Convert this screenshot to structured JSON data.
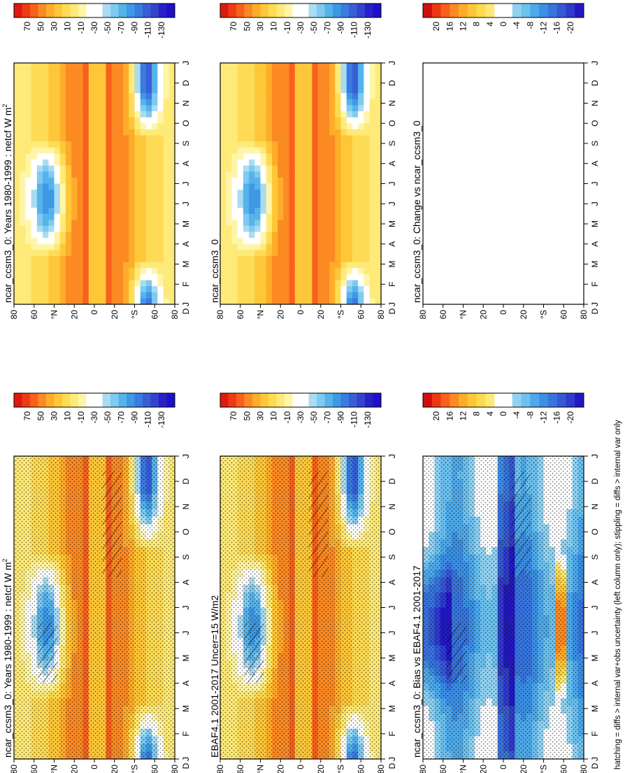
{
  "figure": {
    "footer": "hatching = diffs > internal var+obs uncertainty (left column only); stippling = diffs > internal var only"
  },
  "chart_data": [
    {
      "type": "heatmap",
      "title": "ncar_ccsm3_0: Years 1980-1999 : netcf W m^-2",
      "title_main": "ncar_ccsm3_0: Years 1980-1999 : netcf W m",
      "title_sup": "2",
      "x_ticks": [
        "J",
        "F",
        "M",
        "A",
        "M",
        "J",
        "J",
        "A",
        "S",
        "O",
        "N",
        "D",
        "J"
      ],
      "y_ticks": [
        "80",
        "60",
        "°N",
        "20",
        "0",
        "20",
        "°S",
        "60",
        "80"
      ],
      "y_start_label": "D",
      "colorbar": {
        "labels": [
          "70",
          "50",
          "30",
          "10",
          "-10",
          "-30",
          "-50",
          "-70",
          "-90",
          "-110",
          "-130"
        ],
        "range": [
          -130,
          70
        ]
      },
      "field": "climatology",
      "stippling": true,
      "hatching": true
    },
    {
      "type": "heatmap",
      "title": "ncar_ccsm3_0: Years 1980-1999 : netcf W m^-2",
      "title_main": "ncar_ccsm3_0: Years 1980-1999 : netcf W m",
      "title_sup": "2",
      "x_ticks": [
        "J",
        "F",
        "M",
        "A",
        "M",
        "J",
        "J",
        "A",
        "S",
        "O",
        "N",
        "D",
        "J"
      ],
      "y_ticks": [
        "80",
        "60",
        "°N",
        "20",
        "0",
        "20",
        "°S",
        "60",
        "80"
      ],
      "y_start_label": "D",
      "colorbar": {
        "labels": [
          "70",
          "50",
          "30",
          "10",
          "-10",
          "-30",
          "-50",
          "-70",
          "-90",
          "-110",
          "-130"
        ],
        "range": [
          -130,
          70
        ]
      },
      "field": "climatology",
      "stippling": false,
      "hatching": false
    },
    {
      "type": "heatmap",
      "title": "EBAF4.1 2001-2017 Uncer=15 W/m2",
      "title_main": "EBAF4.1 2001-2017 Uncer=15 W/m2",
      "title_sup": "",
      "x_ticks": [
        "J",
        "F",
        "M",
        "A",
        "M",
        "J",
        "J",
        "A",
        "S",
        "O",
        "N",
        "D",
        "J"
      ],
      "y_ticks": [
        "80",
        "60",
        "°N",
        "20",
        "0",
        "20",
        "°S",
        "60",
        "80"
      ],
      "y_start_label": "D",
      "colorbar": {
        "labels": [
          "70",
          "50",
          "30",
          "10",
          "-10",
          "-30",
          "-50",
          "-70",
          "-90",
          "-110",
          "-130"
        ],
        "range": [
          -130,
          70
        ]
      },
      "field": "observations",
      "stippling": true,
      "hatching": true
    },
    {
      "type": "heatmap",
      "title": "ncar_ccsm3_0",
      "title_main": "ncar_ccsm3_0",
      "title_sup": "",
      "x_ticks": [
        "J",
        "F",
        "M",
        "A",
        "M",
        "J",
        "J",
        "A",
        "S",
        "O",
        "N",
        "D",
        "J"
      ],
      "y_ticks": [
        "80",
        "60",
        "°N",
        "20",
        "0",
        "20",
        "°S",
        "60",
        "80"
      ],
      "y_start_label": "D",
      "colorbar": {
        "labels": [
          "70",
          "50",
          "30",
          "10",
          "-10",
          "-30",
          "-50",
          "-70",
          "-90",
          "-110",
          "-130"
        ],
        "range": [
          -130,
          70
        ]
      },
      "field": "climatology",
      "stippling": false,
      "hatching": false
    },
    {
      "type": "heatmap",
      "title": "ncar_ccsm3_0: Bias vs EBAF4.1 2001-2017",
      "title_main": "ncar_ccsm3_0: Bias vs EBAF4.1 2001-2017",
      "title_sup": "",
      "x_ticks": [
        "J",
        "F",
        "M",
        "A",
        "M",
        "J",
        "J",
        "A",
        "S",
        "O",
        "N",
        "D",
        "J"
      ],
      "y_ticks": [
        "80",
        "60",
        "°N",
        "20",
        "0",
        "20",
        "°S",
        "60",
        "80"
      ],
      "y_start_label": "D",
      "colorbar": {
        "labels": [
          "20",
          "16",
          "12",
          "8",
          "4",
          "0",
          "-4",
          "-8",
          "-12",
          "-16",
          "-20"
        ],
        "range": [
          -20,
          20
        ]
      },
      "field": "bias",
      "stippling": true,
      "hatching": true
    },
    {
      "type": "heatmap",
      "title": "ncar_ccsm3_0: Change vs ncar_ccsm3_0",
      "title_main": "ncar_ccsm3_0: Change vs ncar_ccsm3_0",
      "title_sup": "",
      "x_ticks": [
        "J",
        "F",
        "M",
        "A",
        "M",
        "J",
        "J",
        "A",
        "S",
        "O",
        "N",
        "D",
        "J"
      ],
      "y_ticks": [
        "80",
        "60",
        "°N",
        "20",
        "0",
        "20",
        "°S",
        "60",
        "80"
      ],
      "y_start_label": "D",
      "colorbar": {
        "labels": [
          "20",
          "16",
          "12",
          "8",
          "4",
          "0",
          "-4",
          "-8",
          "-12",
          "-16",
          "-20"
        ],
        "range": [
          -20,
          20
        ]
      },
      "field": "empty",
      "stippling": false,
      "hatching": false
    }
  ],
  "palettes": {
    "netcf": [
      "#dd1a10",
      "#ef3a15",
      "#f7611c",
      "#fb8a23",
      "#fdad2a",
      "#fdc739",
      "#fedb55",
      "#feea78",
      "#fff5a8",
      "#ffffff",
      "#ffffff",
      "#a9dcf2",
      "#7fcaf0",
      "#55b3ec",
      "#3e98e6",
      "#3a7be0",
      "#385fd6",
      "#3443ce",
      "#2820c8",
      "#1d0fcc"
    ],
    "bias": [
      "#cf0f0b",
      "#ed3712",
      "#f8611a",
      "#fb8a22",
      "#fdac29",
      "#fdc737",
      "#feda50",
      "#fee977",
      "#ffffff",
      "#ffffff",
      "#92d2f1",
      "#6cc1ee",
      "#4ea9ea",
      "#3b8fe4",
      "#3874dd",
      "#3559d3",
      "#2f3bca",
      "#2318c2"
    ]
  }
}
